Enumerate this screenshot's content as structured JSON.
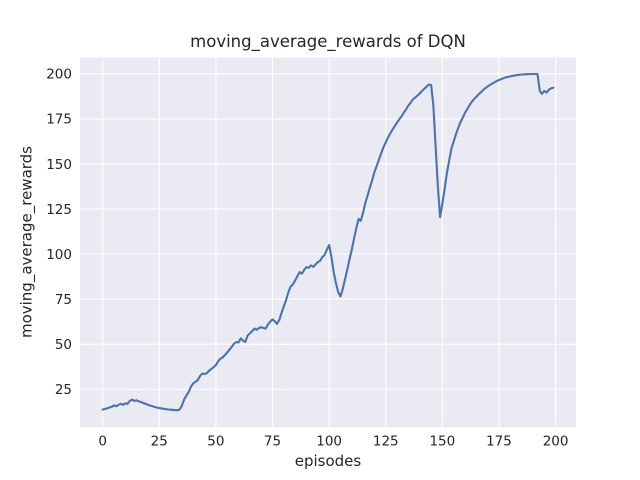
{
  "chart_data": {
    "type": "line",
    "title": "moving_average_rewards of DQN",
    "xlabel": "episodes",
    "ylabel": "moving_average_rewards",
    "x_ticks": [
      0,
      25,
      50,
      75,
      100,
      125,
      150,
      175,
      200
    ],
    "y_ticks": [
      25,
      50,
      75,
      100,
      125,
      150,
      175,
      200
    ],
    "xlim": [
      -10,
      209
    ],
    "ylim": [
      4,
      209
    ],
    "grid": true,
    "legend": null,
    "style": {
      "fig_bg": "#ffffff",
      "plot_bg": "#EAEAF2",
      "grid_color": "#ffffff",
      "text_color": "#262626"
    },
    "series": [
      {
        "name": "moving_average_rewards",
        "color": "#4C72B0",
        "x_start": 0,
        "x_step": 1,
        "values": [
          13.8,
          14.1,
          14.5,
          14.9,
          15.3,
          16.1,
          15.6,
          16.4,
          16.9,
          16.4,
          17.2,
          17.0,
          18.6,
          19.3,
          18.6,
          18.9,
          18.3,
          17.9,
          17.4,
          16.9,
          16.4,
          16.0,
          15.6,
          15.2,
          14.9,
          14.6,
          14.4,
          14.2,
          14.0,
          13.8,
          13.7,
          13.6,
          13.5,
          13.4,
          13.8,
          16.0,
          19.5,
          21.5,
          23.5,
          26.5,
          28.3,
          29.2,
          30.2,
          32.3,
          33.8,
          33.5,
          34.0,
          35.3,
          36.4,
          37.2,
          38.5,
          40.6,
          42.0,
          42.7,
          44.0,
          45.5,
          47.0,
          48.5,
          50.3,
          51.2,
          51.0,
          53.3,
          52.0,
          51.3,
          54.8,
          56.0,
          57.2,
          58.7,
          58.0,
          59.0,
          59.5,
          59.0,
          58.7,
          61.0,
          62.5,
          63.8,
          62.8,
          61.3,
          63.5,
          67.5,
          71.0,
          74.5,
          79.0,
          82.0,
          83.2,
          85.5,
          87.8,
          90.0,
          89.2,
          91.3,
          92.8,
          92.4,
          93.8,
          92.9,
          94.3,
          95.5,
          96.3,
          98.3,
          99.5,
          102.5,
          105.0,
          98.5,
          90.0,
          84.0,
          79.0,
          76.5,
          80.5,
          86.0,
          91.5,
          97.0,
          102.5,
          108.5,
          114.5,
          119.5,
          118.5,
          123.0,
          128.5,
          132.5,
          137.0,
          141.0,
          145.5,
          149.0,
          152.5,
          156.0,
          159.3,
          162.0,
          164.7,
          167.0,
          169.0,
          171.0,
          173.0,
          174.8,
          176.5,
          178.5,
          180.3,
          182.5,
          184.0,
          185.8,
          186.8,
          188.0,
          189.1,
          190.5,
          191.7,
          192.8,
          194.0,
          193.8,
          183.0,
          160.0,
          138.0,
          120.5,
          128.0,
          136.0,
          145.0,
          152.0,
          158.5,
          162.5,
          166.5,
          170.0,
          173.2,
          175.8,
          178.3,
          180.5,
          182.7,
          184.5,
          186.0,
          187.3,
          188.6,
          189.8,
          191.0,
          192.0,
          193.0,
          193.8,
          194.6,
          195.3,
          196.0,
          196.6,
          197.1,
          197.6,
          198.0,
          198.3,
          198.6,
          198.9,
          199.1,
          199.3,
          199.5,
          199.6,
          199.7,
          199.8,
          199.8,
          199.9,
          199.9,
          199.9,
          199.9,
          190.5,
          188.9,
          190.6,
          189.6,
          191.2,
          191.9,
          192.3
        ]
      }
    ]
  }
}
